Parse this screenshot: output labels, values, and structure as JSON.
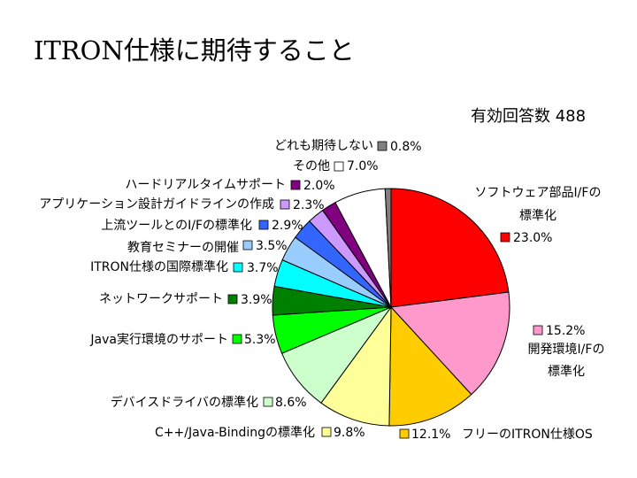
{
  "page": {
    "title": "ITRON仕様に期待すること",
    "response_count": "有効回答数 488"
  },
  "chart_data": {
    "type": "pie",
    "title": "ITRON仕様に期待すること",
    "note": "有効回答数 488",
    "slices": [
      {
        "label": "ソフトウェア部品I/Fの標準化",
        "value": 23.0,
        "value_label": "23.0%",
        "color": "#ff0000"
      },
      {
        "label": "開発環境I/Fの標準化",
        "value": 15.2,
        "value_label": "15.2%",
        "color": "#ff99cc"
      },
      {
        "label": "フリーのITRON仕様OS",
        "value": 12.1,
        "value_label": "12.1%",
        "color": "#ffcc00"
      },
      {
        "label": "C++/Java-Bindingの標準化",
        "value": 9.8,
        "value_label": "9.8%",
        "color": "#ffff99"
      },
      {
        "label": "デバイスドライバの標準化",
        "value": 8.6,
        "value_label": "8.6%",
        "color": "#ccffcc"
      },
      {
        "label": "Java実行環境のサポート",
        "value": 5.3,
        "value_label": "5.3%",
        "color": "#00ff00"
      },
      {
        "label": "ネットワークサポート",
        "value": 3.9,
        "value_label": "3.9%",
        "color": "#008000"
      },
      {
        "label": "ITRON仕様の国際標準化",
        "value": 3.7,
        "value_label": "3.7%",
        "color": "#00ffff"
      },
      {
        "label": "教育セミナーの開催",
        "value": 3.5,
        "value_label": "3.5%",
        "color": "#99ccff"
      },
      {
        "label": "上流ツールとのI/Fの標準化",
        "value": 2.9,
        "value_label": "2.9%",
        "color": "#3366ff"
      },
      {
        "label": "アプリケーション設計ガイドラインの作成",
        "value": 2.3,
        "value_label": "2.3%",
        "color": "#cc99ff"
      },
      {
        "label": "ハードリアルタイムサポート",
        "value": 2.0,
        "value_label": "2.0%",
        "color": "#800080"
      },
      {
        "label": "その他",
        "value": 7.0,
        "value_label": "7.0%",
        "color": "#ffffff"
      },
      {
        "label": "どれも期待しない",
        "value": 0.8,
        "value_label": "0.8%",
        "color": "#808080"
      }
    ]
  }
}
